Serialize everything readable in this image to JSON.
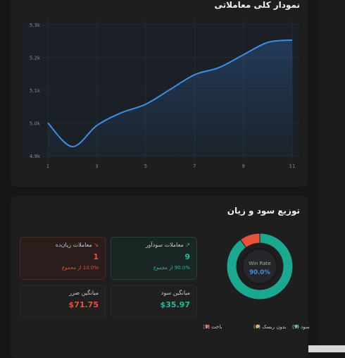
{
  "trend_panel": {
    "title": "نمودار کلی معاملاتی",
    "chart": {
      "type": "line",
      "x": [
        1,
        2,
        3,
        4,
        5,
        6,
        7,
        8,
        9,
        10,
        11
      ],
      "values": [
        5000,
        4928,
        4992,
        5031,
        5057,
        5102,
        5147,
        5169,
        5208,
        5246,
        5253
      ],
      "color": "#3d8fe6",
      "xlim": [
        1,
        11
      ],
      "ylim": [
        4900,
        5300
      ],
      "xticks": [
        1,
        3,
        5,
        7,
        9,
        11
      ],
      "yticks": [
        {
          "value": 4900,
          "label": "4.9k"
        },
        {
          "value": 5000,
          "label": "5.0k"
        },
        {
          "value": 5100,
          "label": "5.1k"
        },
        {
          "value": 5200,
          "label": "5.2k"
        },
        {
          "value": 5300,
          "label": "5.3k"
        }
      ],
      "grid": true
    }
  },
  "distribution_panel": {
    "title": "توزیع سود و زیان",
    "cards": [
      {
        "label": "معاملات زیان‌ده",
        "value": "1",
        "note": "10.0% از مجموع"
      },
      {
        "label": "معاملات سودآور",
        "value": "9",
        "note": "90.0% از مجموع"
      },
      {
        "label": "میانگین ضرر",
        "value": "$71.75"
      },
      {
        "label": "میانگین سود",
        "value": "$35.97"
      }
    ],
    "donut": {
      "type": "pie",
      "categories": [
        "سود (9)",
        "بدون ریسک (0)",
        "باخت (1)"
      ],
      "values": [
        9,
        0,
        1
      ],
      "colors": [
        "#1aa88e",
        "#f0a94a",
        "#e8523a"
      ],
      "center_label": "Win Rate",
      "center_value": "90.0%"
    }
  }
}
